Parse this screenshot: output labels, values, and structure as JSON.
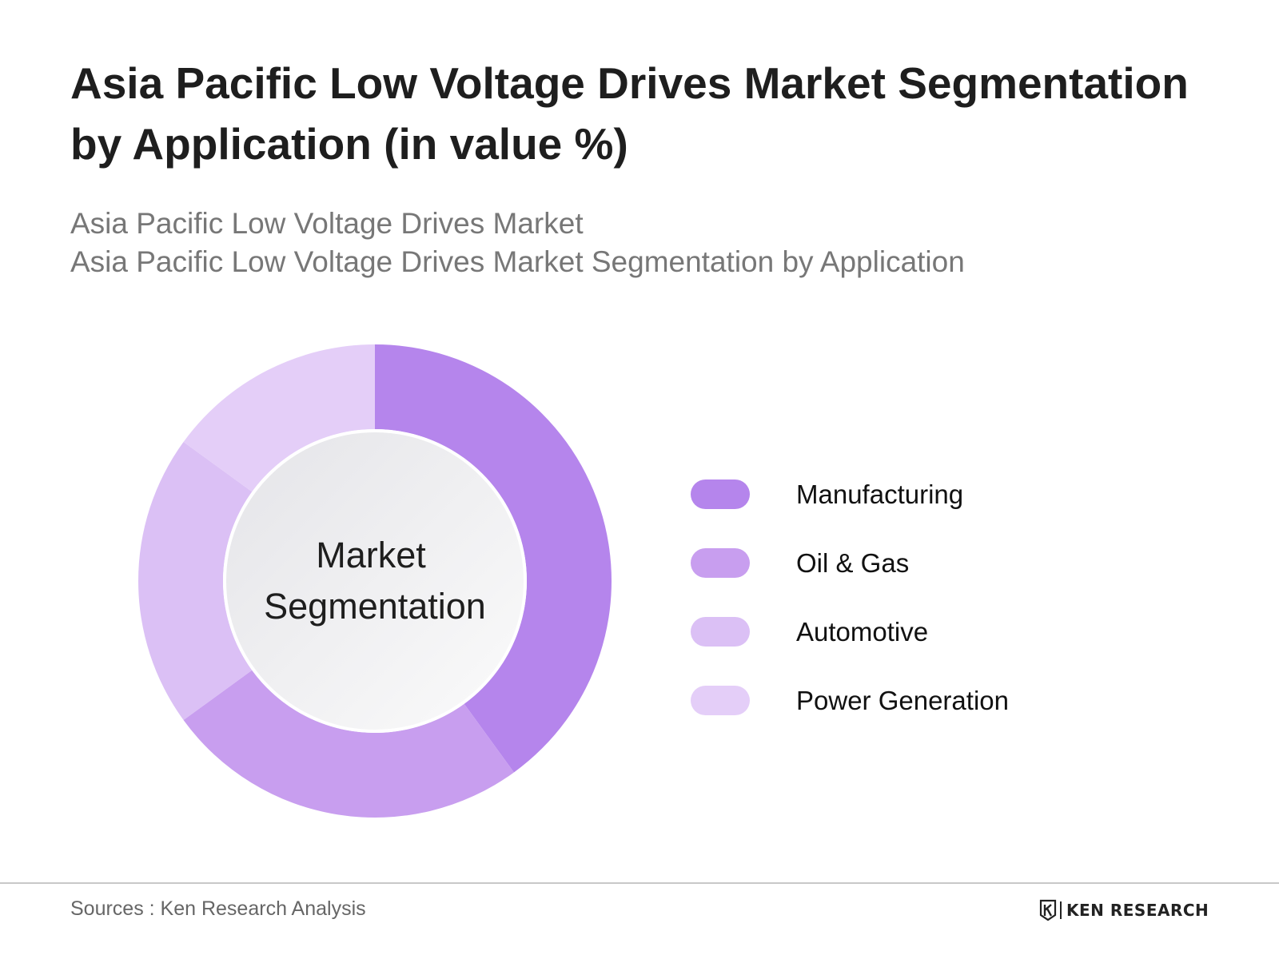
{
  "title": "Asia Pacific Low Voltage Drives Market Segmentation by Application (in value %)",
  "subtitle": {
    "line1": "Asia Pacific Low Voltage Drives Market",
    "line2": "Asia Pacific Low Voltage Drives Market Segmentation by Application"
  },
  "center_label": {
    "line1": "Market",
    "line2": "Segmentation"
  },
  "chart_data": {
    "type": "pie",
    "donut": true,
    "categories": [
      "Manufacturing",
      "Oil & Gas",
      "Automotive",
      "Power Generation"
    ],
    "values": [
      40,
      25,
      20,
      15
    ],
    "colors": [
      "#b585ec",
      "#c89eef",
      "#dbc0f5",
      "#e4cef8"
    ],
    "legend_position": "right"
  },
  "footer": {
    "source": "Sources : Ken Research Analysis",
    "brand_text": "KEN RESEARCH",
    "brand_icon": "ken-research-logo-icon"
  }
}
